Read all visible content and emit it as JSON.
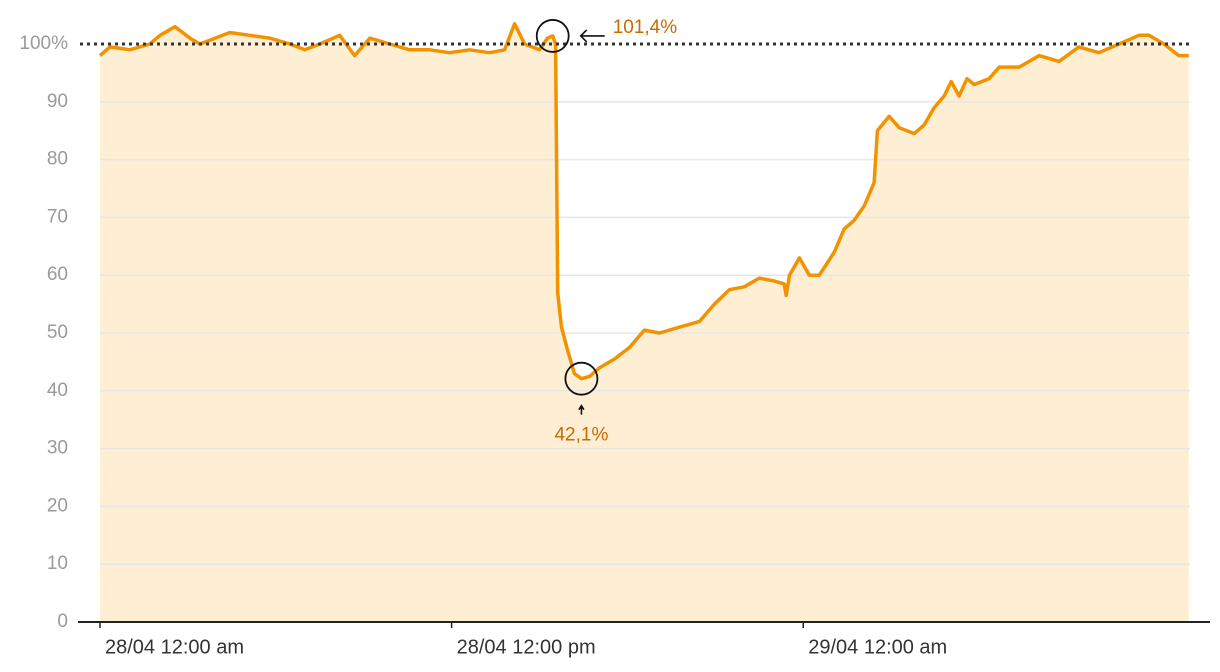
{
  "chart_data": {
    "type": "area",
    "x": [
      0,
      0.34,
      1.02,
      1.7,
      2.05,
      2.56,
      3.07,
      3.41,
      3.92,
      4.43,
      5.11,
      5.8,
      6.48,
      6.99,
      7.5,
      8.18,
      8.69,
      9.21,
      9.89,
      10.57,
      11.25,
      11.93,
      12.61,
      13.3,
      13.81,
      14.15,
      14.49,
      15.0,
      15.27,
      15.45,
      15.55,
      15.62,
      15.75,
      15.96,
      16.19,
      16.43,
      16.71,
      17.05,
      17.56,
      18.07,
      18.58,
      19.09,
      19.77,
      20.46,
      20.97,
      21.48,
      21.99,
      22.5,
      23.01,
      23.35,
      23.42,
      23.53,
      23.87,
      24.21,
      24.55,
      25.06,
      25.4,
      25.74,
      26.08,
      26.42,
      26.53,
      26.93,
      27.28,
      27.79,
      28.13,
      28.47,
      28.81,
      29.05,
      29.32,
      29.59,
      29.83,
      30.34,
      30.69,
      31.37,
      32.05,
      32.73,
      33.41,
      34.09,
      34.78,
      35.46,
      35.8,
      36.31,
      36.82,
      37.16
    ],
    "values": [
      98,
      99.5,
      99,
      100,
      101.5,
      103,
      101,
      100,
      101,
      102,
      101.5,
      101,
      100,
      99,
      100,
      101.5,
      98,
      101,
      100,
      99,
      99,
      98.5,
      99,
      98.5,
      99,
      103.5,
      100,
      99,
      101,
      101.4,
      100,
      57,
      51,
      47,
      43,
      42.1,
      42.5,
      44,
      45.5,
      47.5,
      50.5,
      50,
      51,
      52,
      55,
      57.5,
      58,
      59.5,
      59,
      58.5,
      56.5,
      60,
      63,
      60,
      60,
      64,
      68,
      69.5,
      72,
      76,
      85,
      87.5,
      85.5,
      84.5,
      86,
      89,
      91,
      93.5,
      91,
      94,
      93,
      94,
      96,
      96,
      98,
      97,
      99.5,
      98.5,
      100,
      101.5,
      101.5,
      100,
      98,
      98
    ],
    "color": "#f39200",
    "fill": "#fdeed4",
    "xlim": [
      0,
      37.2
    ],
    "xticks": [
      {
        "value": 0,
        "label": "28/04 12:00 am"
      },
      {
        "value": 12,
        "label": "28/04 12:00 pm"
      },
      {
        "value": 24,
        "label": "29/04 12:00 am"
      }
    ],
    "ylim": [
      0,
      104
    ],
    "yticks": [
      0,
      10,
      20,
      30,
      40,
      50,
      60,
      70,
      80,
      90,
      {
        "value": 100,
        "label": "100%"
      }
    ],
    "grid": true,
    "reference_line": 100,
    "annotations": [
      {
        "text": "101,4%",
        "x": 15.45,
        "y": 101.4
      },
      {
        "text": "42,1%",
        "x": 16.43,
        "y": 42.1
      }
    ]
  }
}
